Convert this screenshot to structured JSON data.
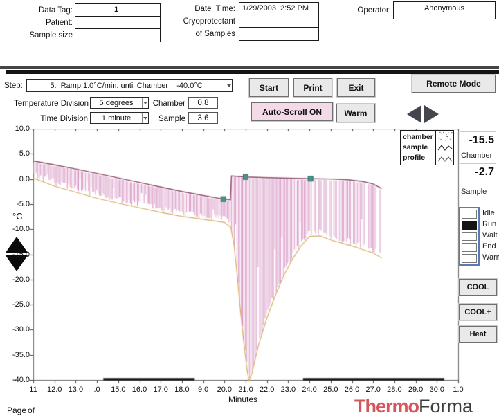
{
  "header": {
    "data_tag_label": "Data Tag:",
    "data_tag_value": "1",
    "patient_label": "Patient:",
    "patient_value": "",
    "sample_size_label": "Sample size",
    "sample_size_value": "",
    "date_time_label": "Date  Time:",
    "date_time_value": "1/29/2003  2:52 PM",
    "cryoprotectant_label": "Cryoprotectant",
    "cryoprotectant_value": "",
    "of_samples_label": "of Samples",
    "of_samples_value": "",
    "operator_label": "Operator:",
    "operator_value": "Anonymous"
  },
  "controls": {
    "step_label": "Step:",
    "step_value": "5.  Ramp 1.0°C/min. until Chamber    -40.0°C",
    "start_label": "Start",
    "print_label": "Print",
    "exit_label": "Exit",
    "remote_mode_label": "Remote Mode",
    "auto_scroll_label": "Auto-Scroll ON",
    "warm_label": "Warm",
    "temperature_division_label": "Temperature Division",
    "temperature_division_value": "5 degrees",
    "time_division_label": "Time Division",
    "time_division_value": "1 minute",
    "chamber_division_label": "Chamber",
    "chamber_division_value": "0.8",
    "sample_division_label": "Sample",
    "sample_division_value": "3.6"
  },
  "readouts": {
    "chamber_value": "-15.5",
    "chamber_label": "Chamber",
    "sample_value": "-2.7",
    "sample_label": "Sample"
  },
  "status": {
    "items": [
      "Idle",
      "Run",
      "Wait",
      "End",
      "Warm"
    ],
    "active": "Run"
  },
  "side_buttons": [
    "COOL",
    "COOL+",
    "Heat"
  ],
  "footer": {
    "page_label": "Page",
    "of_label": "of",
    "brand_primary": "Thermo",
    "brand_secondary": "Forma"
  },
  "colors": {
    "brand_primary": "#d4555c",
    "brand_secondary": "#3c3c3c",
    "auto_scroll_bg": "#f4d9e8",
    "hatch_pink": "#d795c5",
    "top_curve": "#8f4a6b",
    "envelope_tan": "#d9ad62",
    "marker_teal": "#46958a",
    "status_border_blue": "#5b79b2"
  },
  "chart_data": {
    "type": "line",
    "title": "",
    "xlabel": "Minutes",
    "ylabel": "°C",
    "x_range": [
      11,
      31.1
    ],
    "y_range": [
      -40,
      10
    ],
    "grid": false,
    "legend_position": "top-right",
    "legend": [
      "chamber",
      "sample",
      "profile"
    ],
    "y_tick_labels": [
      "10.0",
      "5.0",
      "0.0",
      "-5.0",
      "-10.0",
      "-15.0",
      "-20.0",
      "-25.0",
      "-30.0",
      "-35.0",
      "-40.0"
    ],
    "y_tick_values": [
      10,
      5,
      0,
      -5,
      -10,
      -15,
      -20,
      -25,
      -30,
      -35,
      -40
    ],
    "x_tick_minutes": [
      11,
      12,
      13,
      14,
      15,
      16,
      17,
      18,
      19,
      20,
      21,
      22,
      23,
      24,
      25,
      26,
      27,
      28,
      29,
      30,
      31
    ],
    "x_tick_labels": [
      "11",
      "12.0",
      "13.0",
      ".0",
      "15.0",
      "16.0",
      "17.0",
      "18.0",
      "9.0",
      "20.0",
      "21.0",
      "22.0",
      "23.0",
      "24.0",
      "25.0",
      "26.0",
      "27.0",
      "28.0",
      "29.0",
      "30.0",
      "1.0"
    ],
    "series": [
      {
        "name": "sample_profile_top",
        "color": "#8f4a6b",
        "points": [
          [
            11,
            3.6
          ],
          [
            12,
            2.8
          ],
          [
            13,
            2.0
          ],
          [
            14,
            1.1
          ],
          [
            15,
            0.2
          ],
          [
            16,
            -0.7
          ],
          [
            17,
            -1.6
          ],
          [
            18,
            -2.5
          ],
          [
            19,
            -3.3
          ],
          [
            19.95,
            -4.0
          ],
          [
            20.28,
            -4.15
          ],
          [
            20.33,
            0.6
          ],
          [
            21,
            0.4
          ],
          [
            22,
            0.25
          ],
          [
            23,
            0.15
          ],
          [
            24.05,
            0.05
          ],
          [
            25,
            0.0
          ],
          [
            25.8,
            -0.15
          ],
          [
            26.5,
            -0.5
          ],
          [
            27.0,
            -1.0
          ],
          [
            27.4,
            -1.9
          ]
        ]
      },
      {
        "name": "chamber_lower_envelope",
        "color": "#d9ad62",
        "points": [
          [
            11,
            0.3
          ],
          [
            12,
            -1.3
          ],
          [
            13,
            -2.5
          ],
          [
            14,
            -3.7
          ],
          [
            15,
            -4.7
          ],
          [
            16,
            -5.6
          ],
          [
            17,
            -6.5
          ],
          [
            18,
            -7.3
          ],
          [
            19,
            -7.9
          ],
          [
            20,
            -8.5
          ],
          [
            20.3,
            -9.5
          ],
          [
            20.45,
            -13
          ],
          [
            20.6,
            -19
          ],
          [
            20.75,
            -26
          ],
          [
            20.9,
            -32
          ],
          [
            21.05,
            -37.5
          ],
          [
            21.15,
            -40
          ],
          [
            21.3,
            -38.5
          ],
          [
            21.6,
            -33
          ],
          [
            22,
            -27.5
          ],
          [
            22.4,
            -23
          ],
          [
            22.8,
            -19
          ],
          [
            23.2,
            -15.8
          ],
          [
            23.6,
            -13.2
          ],
          [
            24.0,
            -11.3
          ],
          [
            24.5,
            -11.2
          ],
          [
            25,
            -12
          ],
          [
            25.5,
            -12.6
          ],
          [
            26,
            -13.2
          ],
          [
            26.5,
            -13.9
          ],
          [
            27,
            -14.6
          ],
          [
            27.4,
            -15.6
          ]
        ]
      }
    ],
    "hatch": {
      "color": "#d795c5",
      "start_x": 11.02,
      "end_x": 27.4
    },
    "markers": {
      "color": "#46958a",
      "points": [
        [
          19.95,
          -4.0
        ],
        [
          21.0,
          0.4
        ],
        [
          24.05,
          0.05
        ]
      ]
    },
    "axis_bold_segments": [
      [
        14.3,
        18.6
      ],
      [
        23.7,
        30.35
      ]
    ]
  }
}
